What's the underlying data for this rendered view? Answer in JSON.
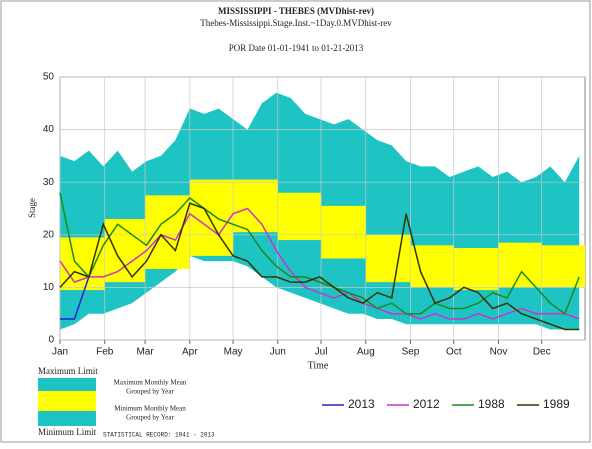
{
  "chart_data": {
    "type": "line",
    "title": "MISSISSIPPI - THEBES  (MVDhist-rev)",
    "subtitle": "Thebes-Mississippi.Stage.Inst.~1Day.0.MVDhist-rev",
    "por": "POR Date 01-01-1941 to 01-21-2013",
    "ylabel": "Stage",
    "xlabel": "Time",
    "xlim": [
      1,
      365
    ],
    "ylim": [
      0,
      50
    ],
    "yticks": [
      0,
      10,
      20,
      30,
      40,
      50
    ],
    "xticks": [
      {
        "value": 1,
        "label": "Jan"
      },
      {
        "value": 32,
        "label": "Feb"
      },
      {
        "value": 60,
        "label": "Mar"
      },
      {
        "value": 91,
        "label": "Apr"
      },
      {
        "value": 121,
        "label": "May"
      },
      {
        "value": 152,
        "label": "Jun"
      },
      {
        "value": 182,
        "label": "Jul"
      },
      {
        "value": 213,
        "label": "Aug"
      },
      {
        "value": 244,
        "label": "Sep"
      },
      {
        "value": 274,
        "label": "Oct"
      },
      {
        "value": 305,
        "label": "Nov"
      },
      {
        "value": 335,
        "label": "Dec"
      }
    ],
    "grid": true,
    "x": [
      1,
      11,
      21,
      31,
      41,
      51,
      61,
      71,
      81,
      91,
      101,
      111,
      121,
      131,
      141,
      151,
      161,
      171,
      181,
      191,
      201,
      211,
      221,
      231,
      241,
      251,
      261,
      271,
      281,
      291,
      301,
      311,
      321,
      331,
      341,
      351,
      361
    ],
    "limits": {
      "color": "#1ec4c4",
      "max": [
        35,
        34,
        36,
        33,
        36,
        32,
        34,
        35,
        38,
        44,
        43,
        44,
        42,
        40,
        45,
        47,
        46,
        43,
        42,
        41,
        42,
        40,
        38,
        37,
        34,
        33,
        33,
        31,
        32,
        33,
        31,
        32,
        30,
        31,
        33,
        30,
        35
      ],
      "min": [
        2,
        3,
        5,
        5,
        6,
        7,
        9,
        11,
        13,
        16,
        15,
        15,
        15,
        14,
        12,
        10,
        9,
        8,
        7,
        6,
        5,
        5,
        4,
        4,
        3,
        3,
        3,
        3,
        3,
        3,
        3,
        3,
        3,
        3,
        2,
        2,
        2
      ]
    },
    "monthly_mean": {
      "color": "#ffff00",
      "max": [
        19.5,
        23,
        27.5,
        30.5,
        30.5,
        28,
        25.5,
        20,
        18,
        17.5,
        18.5,
        18
      ],
      "min": [
        9.5,
        11,
        13.5,
        16,
        20.5,
        19,
        15.5,
        11,
        10,
        9.5,
        10,
        10
      ]
    },
    "series": [
      {
        "name": "2013",
        "color": "#2222cc",
        "values": [
          4,
          4,
          12,
          null,
          null,
          null,
          null,
          null,
          null,
          null,
          null,
          null,
          null,
          null,
          null,
          null,
          null,
          null,
          null,
          null,
          null,
          null,
          null,
          null,
          null,
          null,
          null,
          null,
          null,
          null,
          null,
          null,
          null,
          null,
          null,
          null,
          null
        ]
      },
      {
        "name": "2012",
        "color": "#cc33cc",
        "values": [
          15,
          11,
          12,
          12,
          13,
          15,
          17,
          20,
          19,
          24,
          22,
          20,
          24,
          25,
          22,
          17,
          13,
          10,
          9,
          8,
          9,
          7,
          6,
          5,
          5,
          4,
          5,
          4,
          4,
          5,
          4,
          5,
          6,
          5,
          5,
          5,
          4
        ]
      },
      {
        "name": "1988",
        "color": "#1a8a1a",
        "values": [
          28,
          15,
          12,
          18,
          22,
          20,
          18,
          22,
          24,
          27,
          25,
          23,
          22,
          21,
          17,
          14,
          12,
          12,
          11,
          10,
          9,
          8,
          6,
          7,
          5,
          5,
          7,
          6,
          6,
          7,
          9,
          8,
          13,
          10,
          7,
          5,
          12
        ]
      },
      {
        "name": "1989",
        "color": "#333300",
        "values": [
          10,
          13,
          12,
          22,
          16,
          12,
          15,
          20,
          17,
          26,
          25,
          20,
          16,
          15,
          12,
          12,
          11,
          11,
          12,
          10,
          8,
          7,
          9,
          8,
          24,
          13,
          7,
          8,
          10,
          9,
          6,
          7,
          5,
          4,
          3,
          2,
          2
        ]
      }
    ],
    "legend": {
      "max_limit": "Maximum Limit",
      "min_limit": "Minimum Limit",
      "max_mean": [
        "Maximum Monthly Mean",
        "Grouped by Year"
      ],
      "min_mean": [
        "Minimum Monthly Mean",
        "Grouped by Year"
      ]
    },
    "record": "STATISTICAL RECORD: 1941 - 2013"
  }
}
